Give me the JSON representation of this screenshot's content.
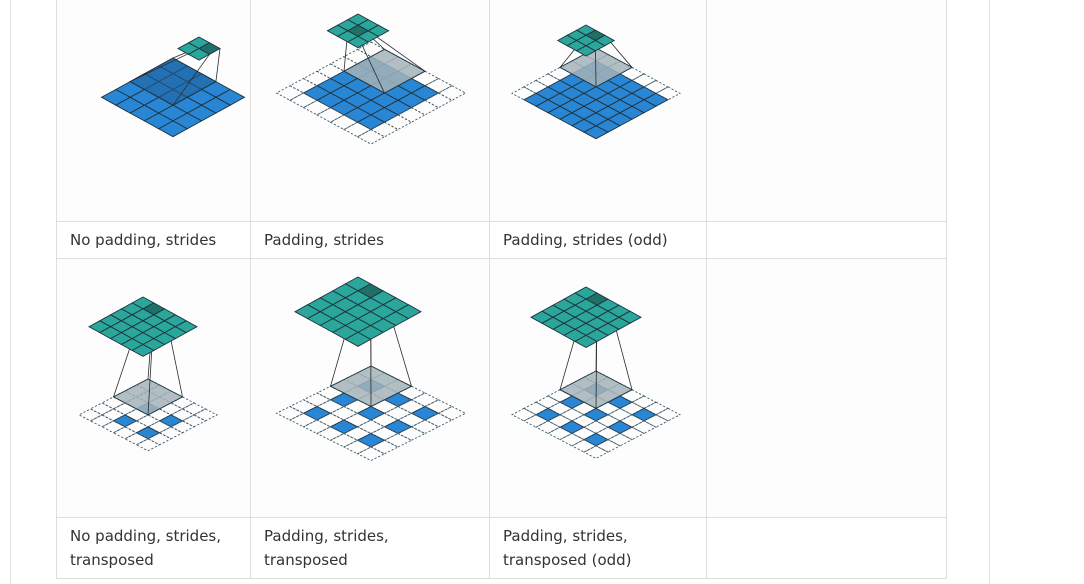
{
  "gallery": {
    "rows": [
      {
        "animations": [
          {
            "icon": "no-padding-strides-animation"
          },
          {
            "icon": "padding-strides-animation"
          },
          {
            "icon": "padding-strides-odd-animation"
          },
          {
            "icon": ""
          }
        ],
        "captions": [
          "No padding, strides",
          "Padding, strides",
          "Padding, strides (odd)",
          ""
        ]
      },
      {
        "animations": [
          {
            "icon": "no-padding-strides-transposed-animation"
          },
          {
            "icon": "padding-strides-transposed-animation"
          },
          {
            "icon": "padding-strides-transposed-odd-animation"
          },
          {
            "icon": ""
          }
        ],
        "captions": [
          "No padding, strides, transposed",
          "Padding, strides, transposed",
          "Padding, strides, transposed (odd)",
          ""
        ]
      }
    ]
  },
  "colors": {
    "input_blue": "#2986d4",
    "input_blue_dark": "#1f5f98",
    "output_teal": "#2aa69a",
    "output_teal_dark": "#1f7168",
    "kernel_gray": "#a3b3b8",
    "stroke": "#1f3440"
  }
}
